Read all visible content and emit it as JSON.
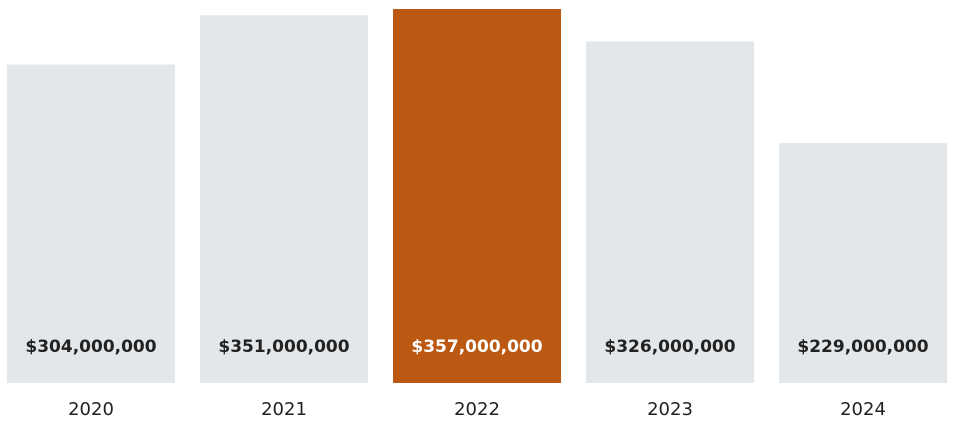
{
  "chart_data": {
    "type": "bar",
    "title": "",
    "xlabel": "",
    "ylabel": "",
    "categories": [
      "2020",
      "2021",
      "2022",
      "2023",
      "2024"
    ],
    "values": [
      304000000,
      351000000,
      357000000,
      326000000,
      229000000
    ],
    "value_labels": [
      "$304,000,000",
      "$351,000,000",
      "$357,000,000",
      "$326,000,000",
      "$229,000,000"
    ],
    "highlight_index": 2,
    "ylim": [
      0,
      357000000
    ],
    "grid": false,
    "colors": {
      "bar": "#e4e7ea",
      "highlight": "#bb5811",
      "label": "#222222",
      "highlight_label": "#ffffff",
      "tick": "#222222"
    }
  }
}
